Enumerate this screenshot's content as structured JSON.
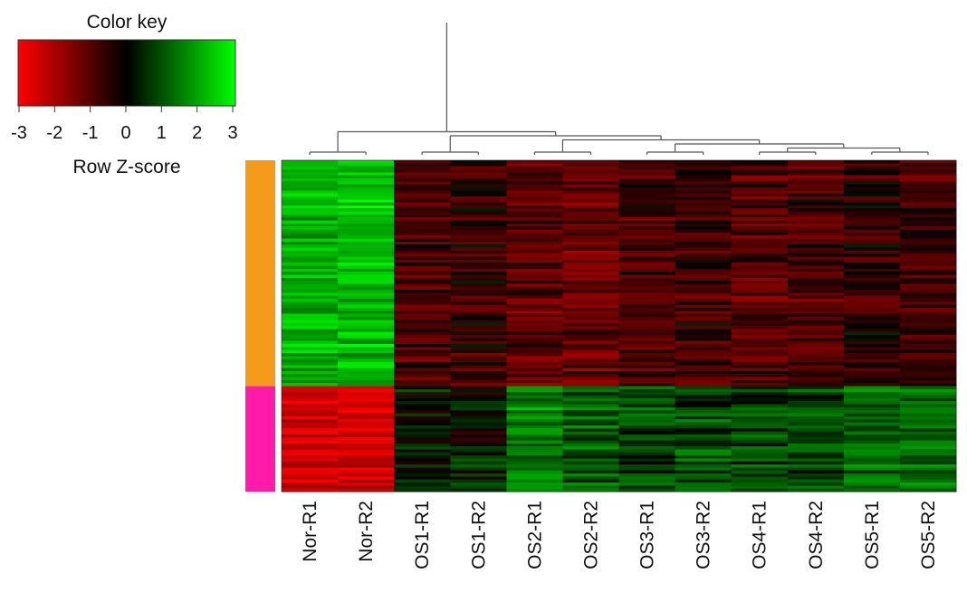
{
  "color_key": {
    "title": "Color key",
    "xlabel": "Row Z-score",
    "ticks": [
      "-3",
      "-2",
      "-1",
      "0",
      "1",
      "2",
      "3"
    ],
    "low_color": "#ff0000",
    "mid_color": "#000000",
    "high_color": "#00ff00"
  },
  "chart_data": {
    "type": "heatmap",
    "title": "",
    "samples": [
      "Nor-R1",
      "Nor-R2",
      "OS1-R1",
      "OS1-R2",
      "OS2-R1",
      "OS2-R2",
      "OS3-R1",
      "OS3-R2",
      "OS4-R1",
      "OS4-R2",
      "OS5-R1",
      "OS5-R2"
    ],
    "value_range": [
      -3,
      3
    ],
    "row_groups": [
      {
        "color": "#f59b1c",
        "rows": 75,
        "profile": [
          2.0,
          2.1,
          -0.75,
          -0.55,
          -0.9,
          -1.05,
          -0.7,
          -0.55,
          -0.75,
          -0.7,
          -0.5,
          -0.55
        ]
      },
      {
        "color": "#ff1aaa",
        "rows": 35,
        "profile": [
          -2.3,
          -2.4,
          0.15,
          0.2,
          1.3,
          0.95,
          0.65,
          0.75,
          0.65,
          0.7,
          1.05,
          1.1
        ]
      }
    ],
    "column_dendrogram": "(((Nor-R1,Nor-R2),((OS1-R1,OS1-R2),((OS2-R1,OS2-R2),((OS3-R1,OS3-R2),((OS4-R1,OS4-R2),(OS5-R1,OS5-R2)))))))"
  }
}
